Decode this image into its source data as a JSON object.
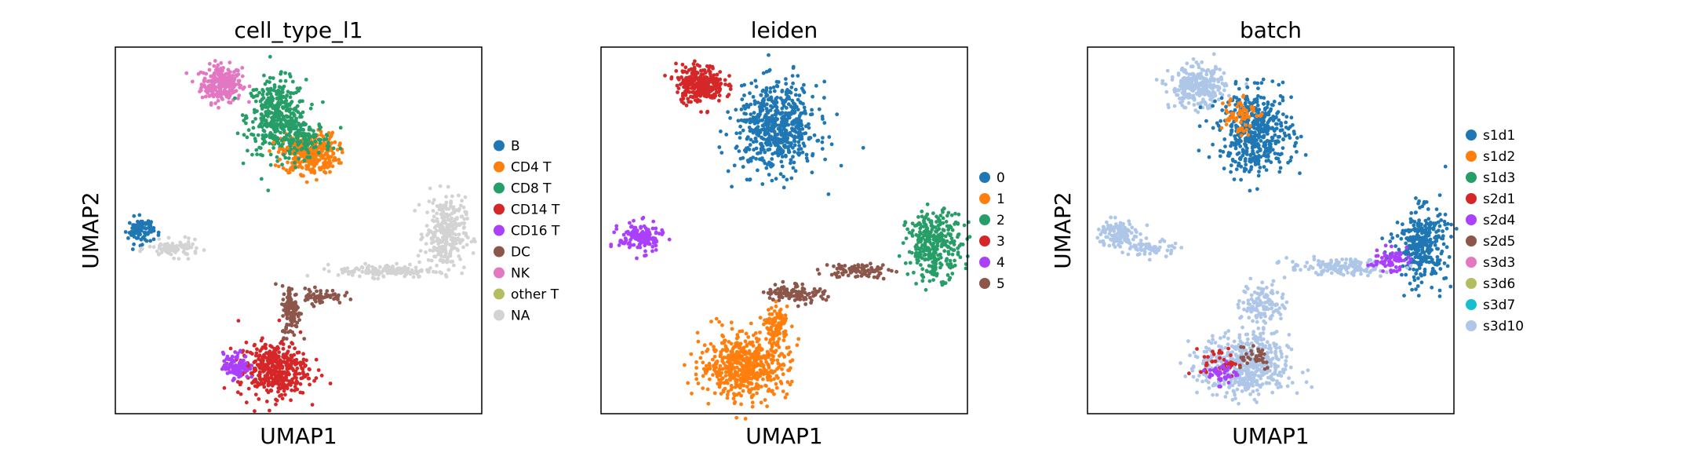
{
  "chart_data": [
    {
      "type": "scatter",
      "title": "cell_type_l1",
      "xlabel": "UMAP1",
      "ylabel": "UMAP2",
      "xlim": [
        0,
        10
      ],
      "ylim": [
        0,
        10
      ],
      "grid": false,
      "ticks": false,
      "legend_position": "right",
      "legend": [
        {
          "label": "B",
          "color": "#1f77b4"
        },
        {
          "label": "CD4 T",
          "color": "#ff7f0e"
        },
        {
          "label": "CD8 T",
          "color": "#279e68"
        },
        {
          "label": "CD14 T",
          "color": "#d62728"
        },
        {
          "label": "CD16 T",
          "color": "#aa40fc"
        },
        {
          "label": "DC",
          "color": "#8c564b"
        },
        {
          "label": "NK",
          "color": "#e377c2"
        },
        {
          "label": "other T",
          "color": "#b5bd61"
        },
        {
          "label": "NA",
          "color": "#d3d3d3"
        }
      ],
      "clusters": [
        {
          "label": "NK",
          "x": 2.9,
          "y": 9.0,
          "rx": 0.55,
          "ry": 0.5,
          "n": 260
        },
        {
          "label": "CD8 T",
          "x": 4.4,
          "y": 8.1,
          "rx": 0.8,
          "ry": 1.0,
          "n": 380
        },
        {
          "label": "CD4 T",
          "x": 5.3,
          "y": 7.1,
          "rx": 0.75,
          "ry": 0.55,
          "n": 330
        },
        {
          "label": "CD8 T",
          "x": 5.1,
          "y": 7.5,
          "rx": 0.8,
          "ry": 0.5,
          "n": 150
        },
        {
          "label": "B",
          "x": 0.7,
          "y": 5.0,
          "rx": 0.35,
          "ry": 0.35,
          "n": 90
        },
        {
          "label": "NA",
          "x": 1.6,
          "y": 4.5,
          "rx": 0.7,
          "ry": 0.22,
          "n": 90
        },
        {
          "label": "NA",
          "x": 9.0,
          "y": 4.9,
          "rx": 0.55,
          "ry": 1.0,
          "n": 300
        },
        {
          "label": "NA",
          "x": 7.4,
          "y": 3.9,
          "rx": 1.3,
          "ry": 0.18,
          "n": 140
        },
        {
          "label": "DC",
          "x": 4.8,
          "y": 2.8,
          "rx": 0.25,
          "ry": 0.7,
          "n": 110
        },
        {
          "label": "DC",
          "x": 5.6,
          "y": 3.2,
          "rx": 0.6,
          "ry": 0.2,
          "n": 60
        },
        {
          "label": "CD14 T",
          "x": 4.3,
          "y": 1.2,
          "rx": 0.95,
          "ry": 0.75,
          "n": 420
        },
        {
          "label": "CD16 T",
          "x": 3.3,
          "y": 1.3,
          "rx": 0.35,
          "ry": 0.35,
          "n": 110
        }
      ]
    },
    {
      "type": "scatter",
      "title": "leiden",
      "xlabel": "UMAP1",
      "ylabel": "",
      "xlim": [
        0,
        10
      ],
      "ylim": [
        0,
        10
      ],
      "grid": false,
      "ticks": false,
      "legend_position": "right",
      "legend": [
        {
          "label": "0",
          "color": "#1f77b4"
        },
        {
          "label": "1",
          "color": "#ff7f0e"
        },
        {
          "label": "2",
          "color": "#279e68"
        },
        {
          "label": "3",
          "color": "#d62728"
        },
        {
          "label": "4",
          "color": "#aa40fc"
        },
        {
          "label": "5",
          "color": "#8c564b"
        }
      ],
      "clusters": [
        {
          "label": "3",
          "x": 2.7,
          "y": 9.0,
          "rx": 0.65,
          "ry": 0.5,
          "n": 280
        },
        {
          "label": "0",
          "x": 4.8,
          "y": 7.8,
          "rx": 1.1,
          "ry": 1.2,
          "n": 600
        },
        {
          "label": "4",
          "x": 1.1,
          "y": 4.8,
          "rx": 0.6,
          "ry": 0.4,
          "n": 150
        },
        {
          "label": "2",
          "x": 9.1,
          "y": 4.6,
          "rx": 0.75,
          "ry": 0.9,
          "n": 320
        },
        {
          "label": "5",
          "x": 5.3,
          "y": 3.3,
          "rx": 0.8,
          "ry": 0.25,
          "n": 110
        },
        {
          "label": "5",
          "x": 7.0,
          "y": 3.9,
          "rx": 0.9,
          "ry": 0.2,
          "n": 90
        },
        {
          "label": "1",
          "x": 3.9,
          "y": 1.3,
          "rx": 1.2,
          "ry": 0.85,
          "n": 550
        },
        {
          "label": "1",
          "x": 4.8,
          "y": 2.4,
          "rx": 0.3,
          "ry": 0.5,
          "n": 100
        }
      ]
    },
    {
      "type": "scatter",
      "title": "batch",
      "xlabel": "UMAP1",
      "ylabel": "UMAP2",
      "xlim": [
        0,
        10
      ],
      "ylim": [
        0,
        10
      ],
      "grid": false,
      "ticks": false,
      "legend_position": "right",
      "legend": [
        {
          "label": "s1d1",
          "color": "#1f77b4"
        },
        {
          "label": "s1d2",
          "color": "#ff7f0e"
        },
        {
          "label": "s1d3",
          "color": "#279e68"
        },
        {
          "label": "s2d1",
          "color": "#d62728"
        },
        {
          "label": "s2d4",
          "color": "#aa40fc"
        },
        {
          "label": "s2d5",
          "color": "#8c564b"
        },
        {
          "label": "s3d3",
          "color": "#e377c2"
        },
        {
          "label": "s3d6",
          "color": "#b5bd61"
        },
        {
          "label": "s3d7",
          "color": "#17becf"
        },
        {
          "label": "s3d10",
          "color": "#aec7e8"
        }
      ],
      "clusters": [
        {
          "label": "s3d10",
          "x": 3.0,
          "y": 8.9,
          "rx": 0.75,
          "ry": 0.55,
          "n": 300
        },
        {
          "label": "s1d1",
          "x": 4.6,
          "y": 7.7,
          "rx": 1.0,
          "ry": 1.1,
          "n": 480
        },
        {
          "label": "s1d2",
          "x": 4.1,
          "y": 8.2,
          "rx": 0.5,
          "ry": 0.6,
          "n": 60
        },
        {
          "label": "s3d10",
          "x": 0.8,
          "y": 4.9,
          "rx": 0.5,
          "ry": 0.4,
          "n": 120
        },
        {
          "label": "s3d10",
          "x": 1.8,
          "y": 4.5,
          "rx": 0.6,
          "ry": 0.22,
          "n": 70
        },
        {
          "label": "s1d1",
          "x": 9.1,
          "y": 4.6,
          "rx": 0.7,
          "ry": 1.0,
          "n": 330
        },
        {
          "label": "s3d10",
          "x": 6.9,
          "y": 4.0,
          "rx": 1.4,
          "ry": 0.22,
          "n": 150
        },
        {
          "label": "s2d4",
          "x": 8.2,
          "y": 4.2,
          "rx": 0.5,
          "ry": 0.3,
          "n": 60
        },
        {
          "label": "s3d10",
          "x": 4.8,
          "y": 3.0,
          "rx": 0.6,
          "ry": 0.6,
          "n": 120
        },
        {
          "label": "s3d10",
          "x": 4.3,
          "y": 1.3,
          "rx": 1.2,
          "ry": 0.85,
          "n": 520
        },
        {
          "label": "s2d1",
          "x": 3.6,
          "y": 1.4,
          "rx": 0.5,
          "ry": 0.4,
          "n": 40
        },
        {
          "label": "s2d4",
          "x": 3.7,
          "y": 1.1,
          "rx": 0.4,
          "ry": 0.3,
          "n": 40
        },
        {
          "label": "s2d5",
          "x": 4.5,
          "y": 1.6,
          "rx": 0.6,
          "ry": 0.4,
          "n": 35
        }
      ]
    }
  ]
}
